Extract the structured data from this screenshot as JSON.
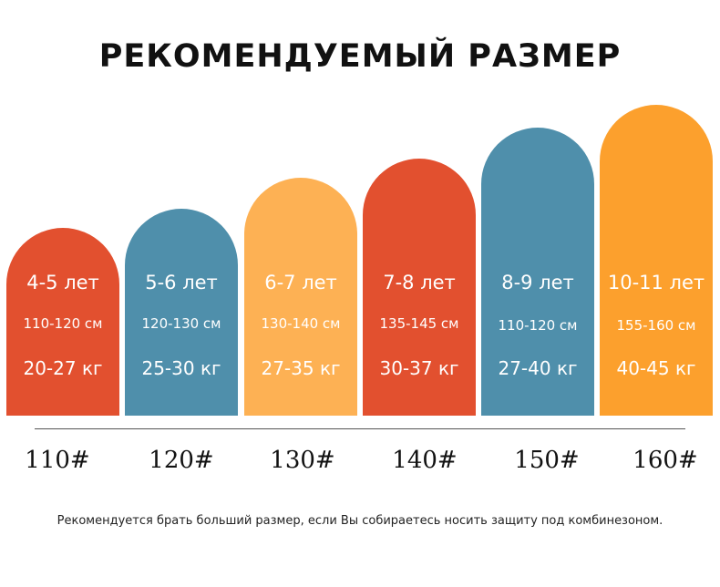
{
  "title": "РЕКОМЕНДУЕМЫЙ РАЗМЕР",
  "colors": {
    "red": "#e2502f",
    "blue": "#4f8fab",
    "light_orange": "#fdb154",
    "orange": "#fca02d"
  },
  "sizes": [
    {
      "age": "4-5 лет",
      "height": "110-120 см",
      "weight": "20-27 кг",
      "label": "110#",
      "color": "#e2502f"
    },
    {
      "age": "5-6 лет",
      "height": "120-130 см",
      "weight": "25-30 кг",
      "label": "120#",
      "color": "#4f8fab"
    },
    {
      "age": "6-7 лет",
      "height": "130-140 см",
      "weight": "27-35 кг",
      "label": "130#",
      "color": "#fdb154"
    },
    {
      "age": "7-8 лет",
      "height": "135-145 см",
      "weight": "30-37 кг",
      "label": "140#",
      "color": "#e2502f"
    },
    {
      "age": "8-9 лет",
      "height": "110-120 см",
      "weight": "27-40 кг",
      "label": "150#",
      "color": "#4f8fab"
    },
    {
      "age": "10-11 лет",
      "height": "155-160 см",
      "weight": "40-45 кг",
      "label": "160#",
      "color": "#fca02d"
    }
  ],
  "note": "Рекомендуется брать больший размер, если Вы собираетесь носить защиту под комбинезоном."
}
